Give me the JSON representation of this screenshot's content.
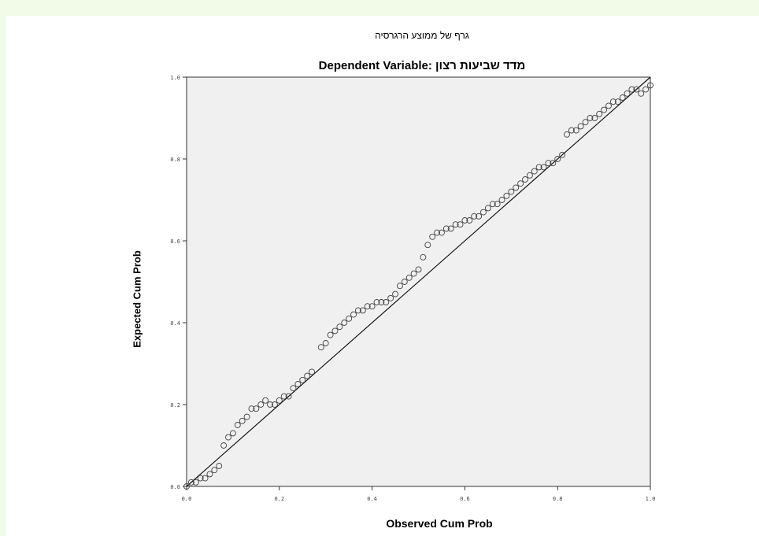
{
  "chart_data": {
    "type": "scatter",
    "title": "Dependent Variable: מדד שביעות רצון",
    "subtitle": "גרף של ממוצע הרגרסיה",
    "xlabel": "Observed Cum Prob",
    "ylabel": "Expected Cum Prob",
    "xlim": [
      0,
      1
    ],
    "ylim": [
      0,
      1
    ],
    "x_ticks": [
      "0.0",
      "0.2",
      "0.4",
      "0.6",
      "0.8",
      "1.0"
    ],
    "y_ticks": [
      "0.0",
      "0.2",
      "0.4",
      "0.6",
      "0.8",
      "1.0"
    ],
    "reference_line": [
      [
        0,
        0
      ],
      [
        1,
        1
      ]
    ],
    "grid": false,
    "plot_background": "#f0f0f0",
    "marker": "open-circle",
    "points": [
      [
        0.0,
        0.0
      ],
      [
        0.01,
        0.01
      ],
      [
        0.02,
        0.01
      ],
      [
        0.03,
        0.02
      ],
      [
        0.04,
        0.02
      ],
      [
        0.05,
        0.03
      ],
      [
        0.06,
        0.04
      ],
      [
        0.07,
        0.05
      ],
      [
        0.08,
        0.1
      ],
      [
        0.09,
        0.12
      ],
      [
        0.1,
        0.13
      ],
      [
        0.11,
        0.15
      ],
      [
        0.12,
        0.16
      ],
      [
        0.13,
        0.17
      ],
      [
        0.14,
        0.19
      ],
      [
        0.15,
        0.19
      ],
      [
        0.16,
        0.2
      ],
      [
        0.17,
        0.21
      ],
      [
        0.18,
        0.2
      ],
      [
        0.19,
        0.2
      ],
      [
        0.2,
        0.21
      ],
      [
        0.21,
        0.22
      ],
      [
        0.22,
        0.22
      ],
      [
        0.23,
        0.24
      ],
      [
        0.24,
        0.25
      ],
      [
        0.25,
        0.26
      ],
      [
        0.26,
        0.27
      ],
      [
        0.27,
        0.28
      ],
      [
        0.29,
        0.34
      ],
      [
        0.3,
        0.35
      ],
      [
        0.31,
        0.37
      ],
      [
        0.32,
        0.38
      ],
      [
        0.33,
        0.39
      ],
      [
        0.34,
        0.4
      ],
      [
        0.35,
        0.41
      ],
      [
        0.36,
        0.42
      ],
      [
        0.37,
        0.43
      ],
      [
        0.38,
        0.43
      ],
      [
        0.39,
        0.44
      ],
      [
        0.4,
        0.44
      ],
      [
        0.41,
        0.45
      ],
      [
        0.42,
        0.45
      ],
      [
        0.43,
        0.45
      ],
      [
        0.44,
        0.46
      ],
      [
        0.45,
        0.47
      ],
      [
        0.46,
        0.49
      ],
      [
        0.47,
        0.5
      ],
      [
        0.48,
        0.51
      ],
      [
        0.49,
        0.52
      ],
      [
        0.5,
        0.53
      ],
      [
        0.51,
        0.56
      ],
      [
        0.52,
        0.59
      ],
      [
        0.53,
        0.61
      ],
      [
        0.54,
        0.62
      ],
      [
        0.55,
        0.62
      ],
      [
        0.56,
        0.63
      ],
      [
        0.57,
        0.63
      ],
      [
        0.58,
        0.64
      ],
      [
        0.59,
        0.64
      ],
      [
        0.6,
        0.65
      ],
      [
        0.61,
        0.65
      ],
      [
        0.62,
        0.66
      ],
      [
        0.63,
        0.66
      ],
      [
        0.64,
        0.67
      ],
      [
        0.65,
        0.68
      ],
      [
        0.66,
        0.69
      ],
      [
        0.67,
        0.69
      ],
      [
        0.68,
        0.7
      ],
      [
        0.69,
        0.71
      ],
      [
        0.7,
        0.72
      ],
      [
        0.71,
        0.73
      ],
      [
        0.72,
        0.74
      ],
      [
        0.73,
        0.75
      ],
      [
        0.74,
        0.76
      ],
      [
        0.75,
        0.77
      ],
      [
        0.76,
        0.78
      ],
      [
        0.77,
        0.78
      ],
      [
        0.78,
        0.79
      ],
      [
        0.79,
        0.79
      ],
      [
        0.8,
        0.8
      ],
      [
        0.81,
        0.81
      ],
      [
        0.82,
        0.86
      ],
      [
        0.83,
        0.87
      ],
      [
        0.84,
        0.87
      ],
      [
        0.85,
        0.88
      ],
      [
        0.86,
        0.89
      ],
      [
        0.87,
        0.9
      ],
      [
        0.88,
        0.9
      ],
      [
        0.89,
        0.91
      ],
      [
        0.9,
        0.92
      ],
      [
        0.91,
        0.93
      ],
      [
        0.92,
        0.94
      ],
      [
        0.93,
        0.94
      ],
      [
        0.94,
        0.95
      ],
      [
        0.95,
        0.96
      ],
      [
        0.96,
        0.97
      ],
      [
        0.97,
        0.97
      ],
      [
        0.98,
        0.96
      ],
      [
        0.99,
        0.97
      ],
      [
        1.0,
        0.98
      ]
    ]
  }
}
